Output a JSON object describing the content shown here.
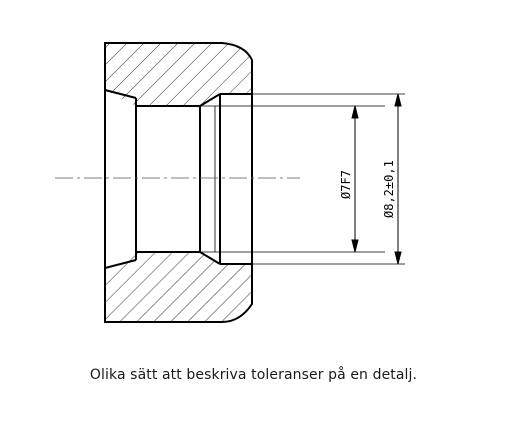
{
  "drawing": {
    "dimensions": [
      {
        "label": "Ø7F7"
      },
      {
        "label": "Ø8,2±0,1"
      }
    ],
    "line_color": "#000000",
    "hatch_color": "#000000"
  },
  "caption": {
    "text": "Olika sätt att beskriva toleranser på en detalj."
  }
}
